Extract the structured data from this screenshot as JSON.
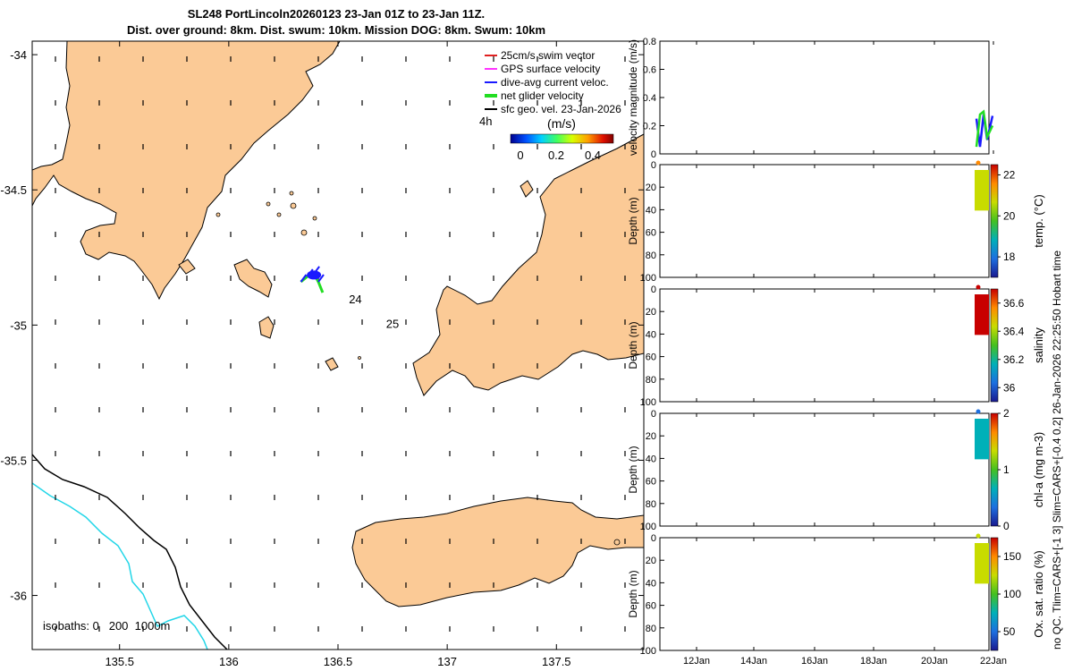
{
  "header": {
    "title": "SL248 PortLincoln20260123 23-Jan 01Z to 23-Jan 11Z.",
    "subtitle": "Dist. over ground: 8km. Dist. swum: 10km. Mission DOG: 8km. Swum: 10km"
  },
  "colors": {
    "land": "#fbca96",
    "coast": "#000000",
    "isobath_200": "#000000",
    "isobath_1000": "#22d6e8",
    "swim": "#e02020",
    "gps": "#ff33ff",
    "dive_avg": "#1a1aff",
    "net": "#22dd22",
    "sfc_geo": "#000000"
  },
  "map": {
    "type": "map",
    "xlim": [
      135.1,
      137.9
    ],
    "ylim": [
      -36.2,
      -33.95
    ],
    "x_ticks": [
      135.5,
      136,
      136.5,
      137,
      137.5
    ],
    "x_tick_labels": [
      "135.5",
      "136",
      "136.5",
      "137",
      "137.5"
    ],
    "y_ticks": [
      -34,
      -34.5,
      -35,
      -35.5,
      -36
    ],
    "y_tick_labels": [
      "-34",
      "-34.5",
      "-35",
      "-35.5",
      "-36"
    ],
    "legend": {
      "items": [
        {
          "label": "25cm/s swim vector",
          "color_key": "swim"
        },
        {
          "label": "GPS surface velocity",
          "color_key": "gps"
        },
        {
          "label": "dive-avg current veloc.",
          "color_key": "dive_avg"
        },
        {
          "label": "net glider velocity",
          "color_key": "net"
        },
        {
          "label": "sfc geo. vel. 23-Jan-2026",
          "color_key": "sfc_geo"
        }
      ],
      "scale_label": "4h",
      "colorbar_title": "(m/s)",
      "colorbar_ticks": [
        "0",
        "0.2",
        "0.4"
      ]
    },
    "day_labels": [
      {
        "text": "24",
        "lon": 136.55,
        "lat": -34.92
      },
      {
        "text": "25",
        "lon": 136.72,
        "lat": -35.01
      }
    ],
    "isobath_note": "isobaths: 0   200  1000m",
    "glider_track": [
      [
        136.33,
        -34.84
      ],
      [
        136.36,
        -34.82
      ],
      [
        136.39,
        -34.81
      ],
      [
        136.41,
        -34.84
      ],
      [
        136.43,
        -34.88
      ]
    ]
  },
  "chart_data": [
    {
      "type": "line",
      "ylabel": "velocity magnitude (m/s)",
      "ylim": [
        0,
        0.8
      ],
      "y_ticks": [
        "0",
        "0.2",
        "0.4",
        "0.6",
        "0.8"
      ],
      "series": [
        {
          "values": [
            0.25,
            0.05,
            0.28,
            0.1,
            0.27
          ]
        },
        {
          "values": [
            0.05,
            0.28,
            0.3,
            0.12,
            0.2
          ]
        }
      ]
    },
    {
      "type": "heatmap",
      "ylabel": "Depth (m)",
      "y_ticks": [
        "0",
        "20",
        "40",
        "60",
        "80",
        "100"
      ],
      "cbar_label": "temp. (°C)",
      "cbar_ticks": [
        "18",
        "20",
        "22"
      ],
      "clim": [
        17,
        22.5
      ],
      "value": 21.0,
      "top_value": 21.8,
      "stops": [
        "#1a1a90",
        "#1c6fe0",
        "#00b0b8",
        "#44c020",
        "#c8dc00",
        "#ff8a00",
        "#c80000"
      ]
    },
    {
      "type": "heatmap",
      "ylabel": "Depth (m)",
      "y_ticks": [
        "0",
        "20",
        "40",
        "60",
        "80",
        "100"
      ],
      "cbar_label": "salinity",
      "cbar_ticks": [
        "36",
        "36.2",
        "36.4",
        "36.6"
      ],
      "clim": [
        35.9,
        36.7
      ],
      "value": 36.68,
      "top_value": 36.68,
      "stops": [
        "#1a1a90",
        "#1c6fe0",
        "#00b0b8",
        "#44c020",
        "#c8dc00",
        "#ff8a00",
        "#c80000"
      ]
    },
    {
      "type": "heatmap",
      "ylabel": "Depth (m)",
      "y_ticks": [
        "0",
        "20",
        "40",
        "60",
        "80",
        "100"
      ],
      "cbar_label": "chl-a (mg m-3)",
      "cbar_ticks": [
        "0",
        "1",
        "2"
      ],
      "clim": [
        0,
        2
      ],
      "value": 0.75,
      "top_value": 0.2,
      "stops": [
        "#1a1a90",
        "#1c6fe0",
        "#00b0b8",
        "#44c020",
        "#c8dc00",
        "#ff8a00",
        "#c80000"
      ]
    },
    {
      "type": "heatmap",
      "ylabel": "Depth (m)",
      "y_ticks": [
        "0",
        "20",
        "40",
        "60",
        "80",
        "100"
      ],
      "cbar_label": "Ox. sat. ratio (%)",
      "cbar_ticks": [
        "50",
        "100",
        "150"
      ],
      "clim": [
        25,
        175
      ],
      "value": 120,
      "top_value": 130,
      "stops": [
        "#1a1a90",
        "#1c6fe0",
        "#00b0b8",
        "#44c020",
        "#c8dc00",
        "#ff8a00",
        "#c80000"
      ]
    }
  ],
  "time_axis": {
    "labels": [
      "12Jan",
      "14Jan",
      "16Jan",
      "18Jan",
      "20Jan",
      "22Jan"
    ]
  },
  "side_note": "no QC. Tlim=CARS+[-1 3] Slim=CARS+[-0.4 0.2] 26-Jan-2026 22:25:50 Hobart time"
}
